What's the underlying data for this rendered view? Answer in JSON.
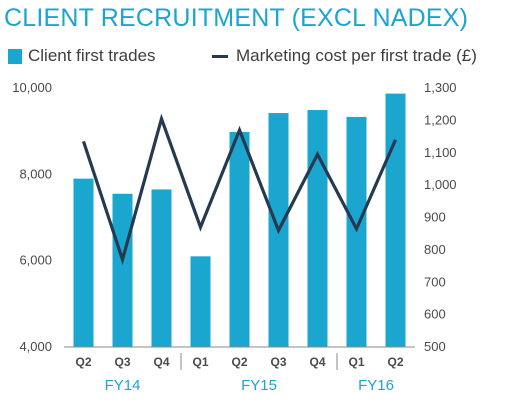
{
  "chart_data": {
    "type": "bar+line",
    "title": "CLIENT RECRUITMENT (EXCL NADEX)",
    "categories": [
      "Q2",
      "Q3",
      "Q4",
      "Q1",
      "Q2",
      "Q3",
      "Q4",
      "Q1",
      "Q2"
    ],
    "groups": [
      {
        "label": "FY14",
        "start": 0,
        "end": 2
      },
      {
        "label": "FY15",
        "start": 3,
        "end": 6
      },
      {
        "label": "FY16",
        "start": 7,
        "end": 8
      }
    ],
    "series": [
      {
        "name": "Client first trades",
        "kind": "bar",
        "axis": "left",
        "color": "#1aa6cf",
        "values": [
          7900,
          7550,
          7650,
          6100,
          8980,
          9420,
          9490,
          9330,
          9870
        ]
      },
      {
        "name": "Marketing cost per first trade (£)",
        "kind": "line",
        "axis": "right",
        "color": "#253a51",
        "values": [
          1135,
          770,
          1205,
          870,
          1170,
          860,
          1095,
          865,
          1140
        ]
      }
    ],
    "y_left": {
      "min": 4000,
      "max": 10000,
      "ticks": [
        "4,000",
        "6,000",
        "8,000",
        "10,000"
      ],
      "tick_values": [
        4000,
        6000,
        8000,
        10000
      ]
    },
    "y_right": {
      "min": 500,
      "max": 1300,
      "ticks": [
        "500",
        "600",
        "700",
        "800",
        "900",
        "1,000",
        "1,100",
        "1,200",
        "1,300"
      ],
      "tick_values": [
        500,
        600,
        700,
        800,
        900,
        1000,
        1100,
        1200,
        1300
      ]
    },
    "legend": "top",
    "grid": false
  }
}
